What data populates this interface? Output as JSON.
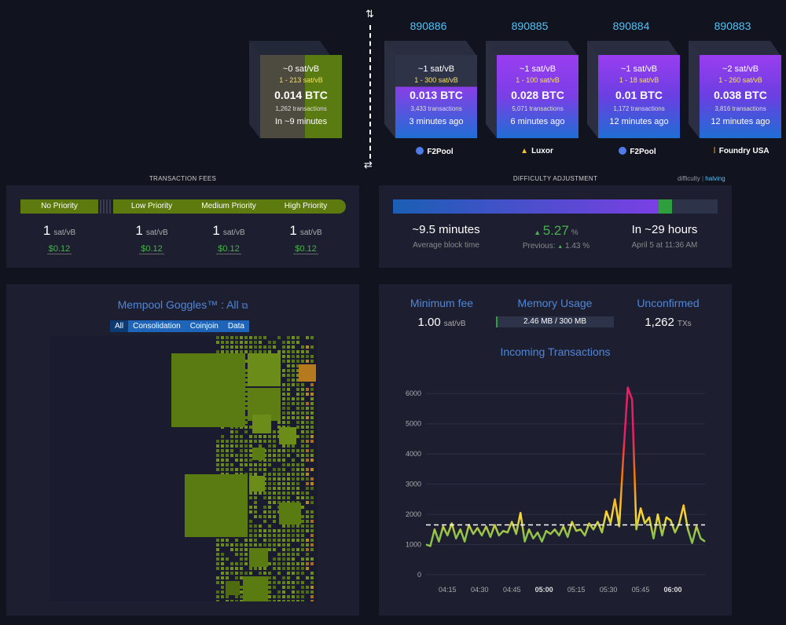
{
  "mempool_block": {
    "fee": "~0 sat/vB",
    "range": "1 - 213 sat/vB",
    "btc": "0.014 BTC",
    "txs": "1,262 transactions",
    "time": "In ~9 minutes"
  },
  "blocks": [
    {
      "height": "890886",
      "fee": "~1 sat/vB",
      "range": "1 - 300 sat/vB",
      "btc": "0.013 BTC",
      "txs": "3,433 transactions",
      "time": "3 minutes ago",
      "pool": "F2Pool"
    },
    {
      "height": "890885",
      "fee": "~1 sat/vB",
      "range": "1 - 100 sat/vB",
      "btc": "0.028 BTC",
      "txs": "5,071 transactions",
      "time": "6 minutes ago",
      "pool": "Luxor"
    },
    {
      "height": "890884",
      "fee": "~1 sat/vB",
      "range": "1 - 18 sat/vB",
      "btc": "0.01 BTC",
      "txs": "1,172 transactions",
      "time": "12 minutes ago",
      "pool": "F2Pool"
    },
    {
      "height": "890883",
      "fee": "~2 sat/vB",
      "range": "1 - 260 sat/vB",
      "btc": "0.038 BTC",
      "txs": "3,816 transactions",
      "time": "12 minutes ago",
      "pool": "Foundry USA"
    }
  ],
  "fees": {
    "title": "TRANSACTION FEES",
    "labels": {
      "no": "No Priority",
      "low": "Low Priority",
      "medium": "Medium Priority",
      "high": "High Priority"
    },
    "values": [
      {
        "rate": "1",
        "unit": "sat/vB",
        "fiat": "$0.12"
      },
      {
        "rate": "1",
        "unit": "sat/vB",
        "fiat": "$0.12"
      },
      {
        "rate": "1",
        "unit": "sat/vB",
        "fiat": "$0.12"
      },
      {
        "rate": "1",
        "unit": "sat/vB",
        "fiat": "$0.12"
      }
    ]
  },
  "difficulty": {
    "title": "DIFFICULTY ADJUSTMENT",
    "toggle_a": "difficulty",
    "toggle_b": "halving",
    "avg_time": "~9.5 minutes",
    "avg_label": "Average block time",
    "change": "5.27",
    "change_unit": "%",
    "previous_label": "Previous:",
    "previous": "1.43 %",
    "eta": "In ~29 hours",
    "eta_date": "April 5 at 11:36 AM",
    "progress_fraction": 0.86
  },
  "goggles": {
    "title": "Mempool Goggles™ : All",
    "tabs": [
      "All",
      "Consolidation",
      "Coinjoin",
      "Data"
    ]
  },
  "stats": {
    "min_fee_title": "Minimum fee",
    "min_fee": "1.00",
    "min_fee_unit": "sat/vB",
    "memory_title": "Memory Usage",
    "memory": "2.46 MB / 300 MB",
    "memory_fraction": 0.0082,
    "unconfirmed_title": "Unconfirmed",
    "unconfirmed": "1,262",
    "unconfirmed_unit": "TXs"
  },
  "chart_data": {
    "type": "line",
    "title": "Incoming Transactions",
    "ylim": [
      0,
      6500
    ],
    "yticks": [
      0,
      1000,
      2000,
      3000,
      4000,
      5000,
      6000
    ],
    "xticks": [
      "04:15",
      "04:30",
      "04:45",
      "05:00",
      "05:15",
      "05:30",
      "05:45",
      "06:00"
    ],
    "reference_line": 1650,
    "x_minutes": [
      0,
      2,
      4,
      6,
      8,
      10,
      12,
      14,
      16,
      18,
      20,
      22,
      24,
      26,
      28,
      30,
      32,
      34,
      36,
      38,
      40,
      42,
      44,
      46,
      48,
      50,
      52,
      54,
      56,
      58,
      60,
      62,
      64,
      66,
      68,
      70,
      72,
      74,
      76,
      78,
      80,
      82,
      84,
      86,
      88,
      90,
      92,
      94,
      96,
      98,
      100,
      102,
      104,
      106,
      108,
      110,
      112,
      114,
      116,
      118,
      120,
      122,
      124,
      126,
      128,
      130
    ],
    "values": [
      1000,
      950,
      1500,
      1100,
      1600,
      1300,
      1700,
      1200,
      1500,
      1100,
      1650,
      1350,
      1550,
      1300,
      1600,
      1250,
      1650,
      1300,
      1450,
      1400,
      1750,
      1350,
      2050,
      1100,
      1500,
      1200,
      1400,
      1100,
      1450,
      1350,
      1500,
      1300,
      1600,
      1250,
      1750,
      1450,
      1500,
      1300,
      1700,
      1500,
      1750,
      1400,
      2100,
      1700,
      2500,
      1600,
      4000,
      6200,
      5800,
      1500,
      2200,
      1700,
      1900,
      1200,
      2000,
      1300,
      1900,
      1800,
      1400,
      1700,
      2300,
      1500,
      1050,
      1600,
      1200,
      1100
    ]
  }
}
